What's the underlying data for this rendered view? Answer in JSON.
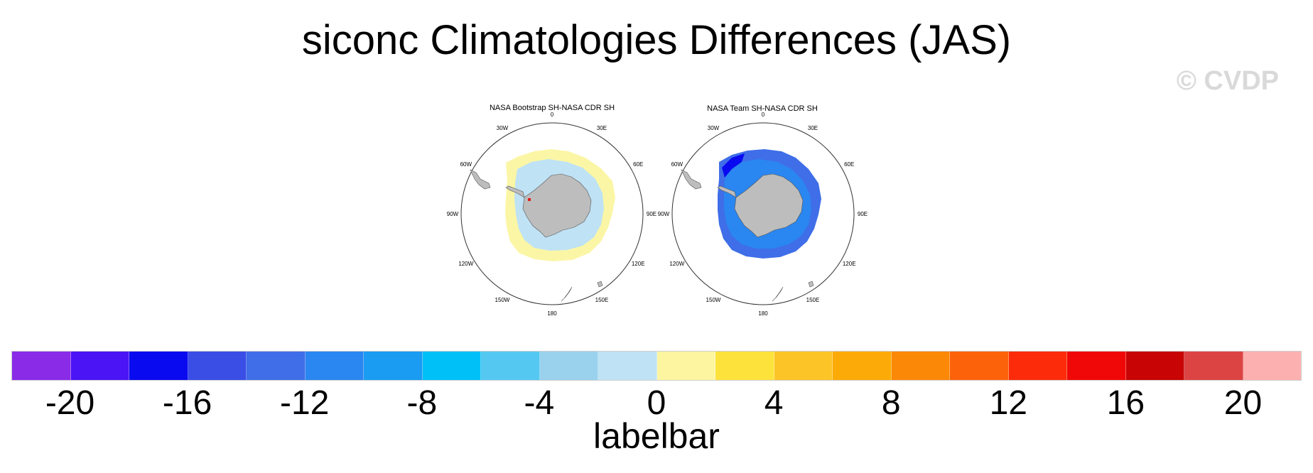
{
  "title": "siconc Climatologies Differences (JAS)",
  "watermark": "© CVDP",
  "panels": [
    {
      "title": "NASA Bootstrap SH-NASA CDR SH"
    },
    {
      "title": "NASA Team SH-NASA CDR SH"
    }
  ],
  "lon_labels": [
    "0",
    "30E",
    "60E",
    "90E",
    "120E",
    "150E",
    "180",
    "150W",
    "120W",
    "90W",
    "60W",
    "30W"
  ],
  "colorbar": {
    "colors": [
      "#8a2be8",
      "#4a14f5",
      "#0a0af0",
      "#3a4ee6",
      "#3f6ee8",
      "#2a86f0",
      "#199cf2",
      "#00c0f8",
      "#55c8f2",
      "#9ad2ee",
      "#bfe2f4",
      "#fdf5a0",
      "#fde23c",
      "#fdc428",
      "#fcaa08",
      "#fc8808",
      "#fc620a",
      "#fc2c0a",
      "#f00808",
      "#c80404",
      "#dc4444",
      "#fcb0b0"
    ],
    "tick_labels": [
      "-20",
      "-16",
      "-12",
      "-8",
      "-4",
      "0",
      "4",
      "8",
      "12",
      "16",
      "20"
    ],
    "title": "labelbar"
  }
}
